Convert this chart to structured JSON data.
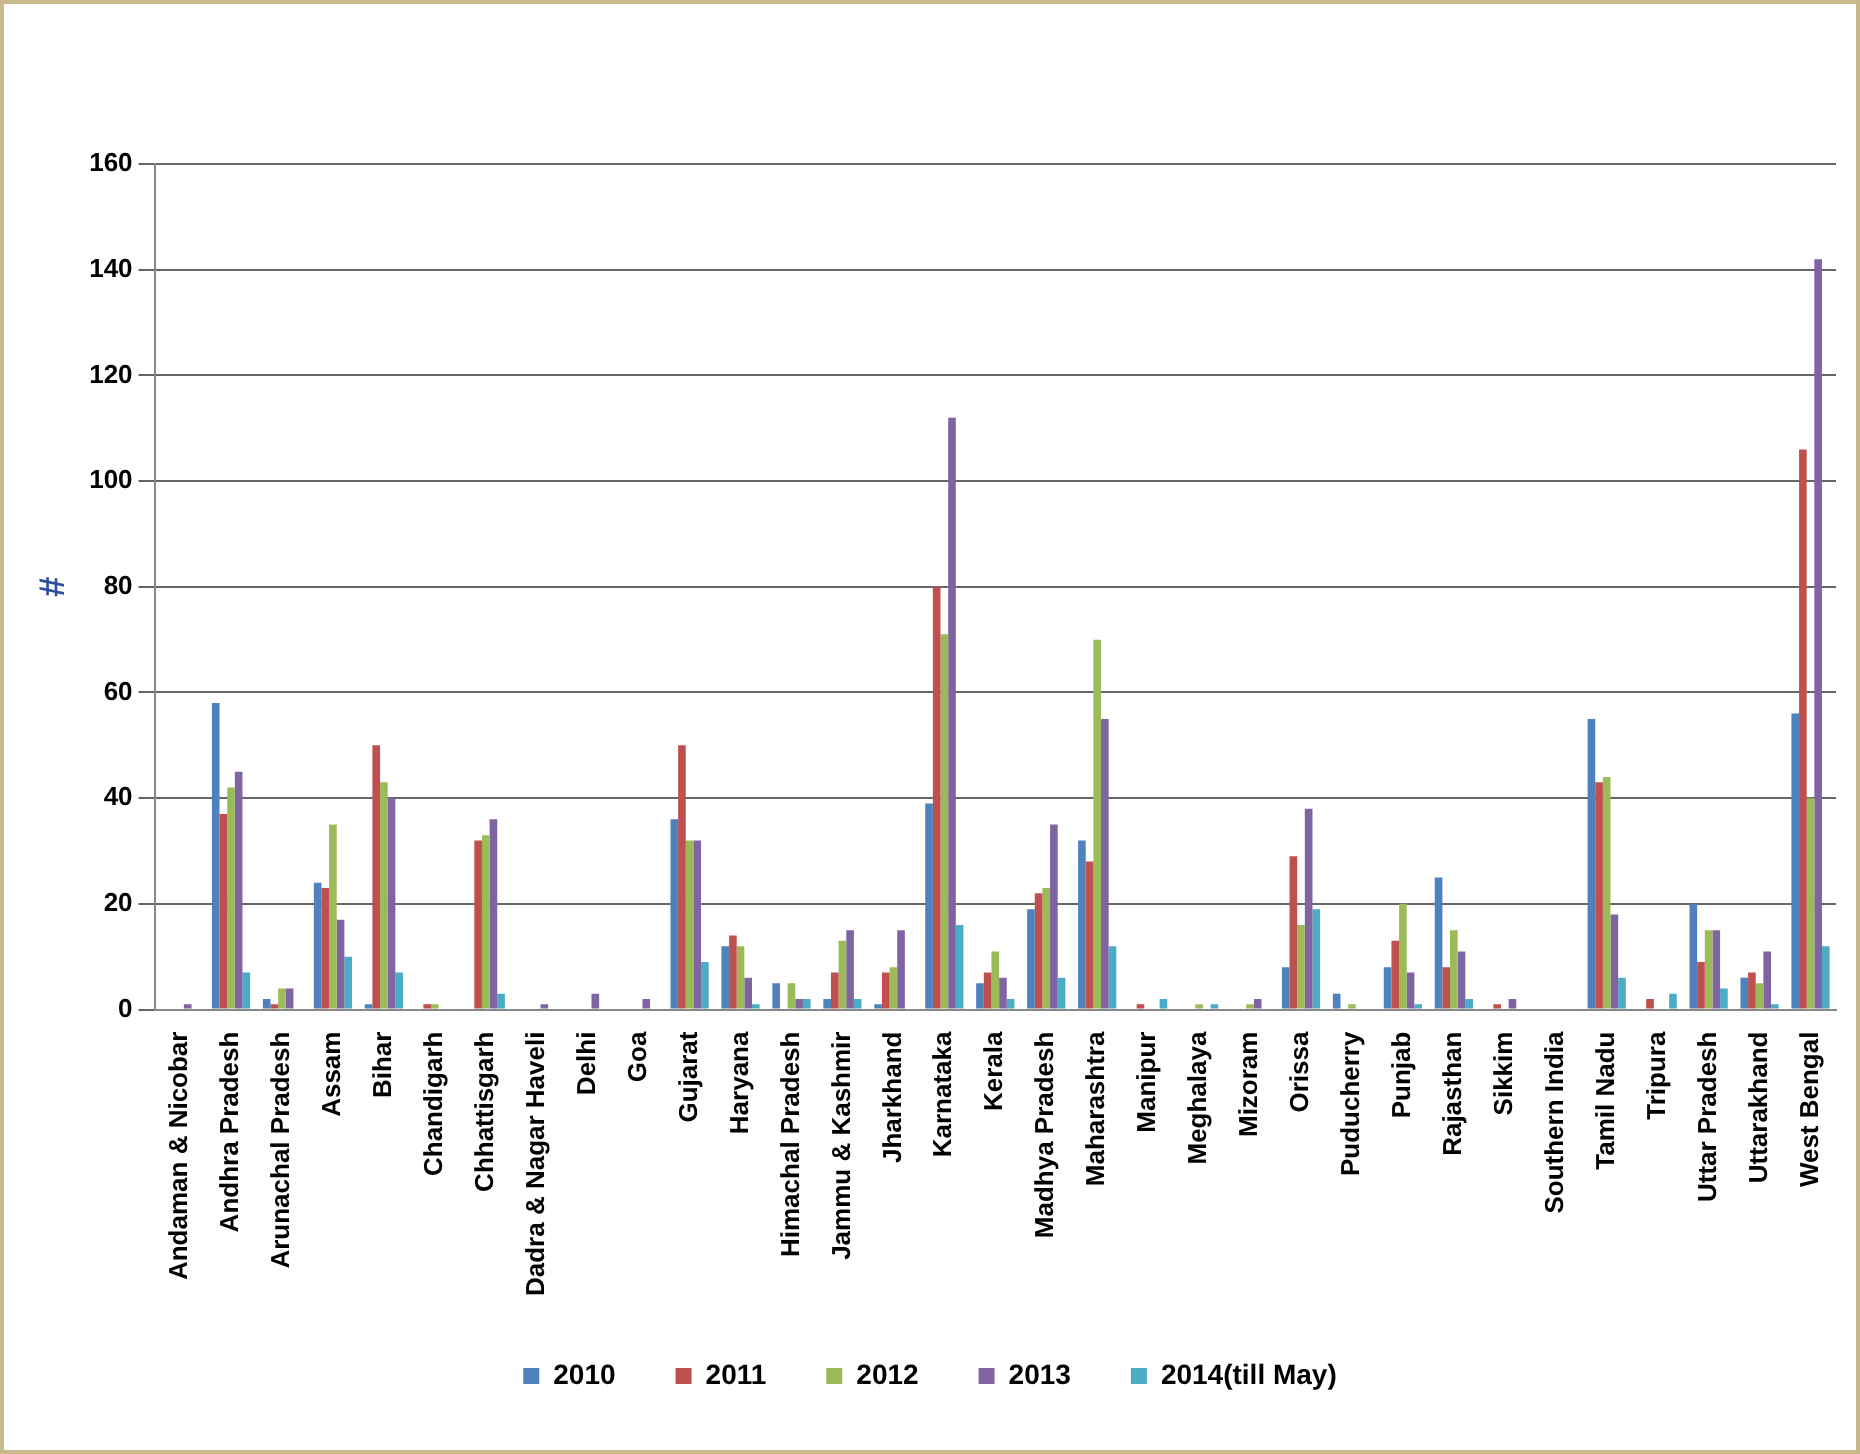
{
  "chart_data": {
    "type": "bar",
    "ylabel": "#",
    "categories": [
      "Andaman & Nicobar",
      "Andhra Pradesh",
      "Arunachal Pradesh",
      "Assam",
      "Bihar",
      "Chandigarh",
      "Chhattisgarh",
      "Dadra & Nagar Haveli",
      "Delhi",
      "Goa",
      "Gujarat",
      "Haryana",
      "Himachal Pradesh",
      "Jammu & Kashmir",
      "Jharkhand",
      "Karnataka",
      "Kerala",
      "Madhya Pradesh",
      "Maharashtra",
      "Manipur",
      "Meghalaya",
      "Mizoram",
      "Orissa",
      "Puducherry",
      "Punjab",
      "Rajasthan",
      "Sikkim",
      "Southern India",
      "Tamil Nadu",
      "Tripura",
      "Uttar Pradesh",
      "Uttarakhand",
      "West Bengal"
    ],
    "series": [
      {
        "name": "2010",
        "color": "#4f81bd",
        "values": [
          0,
          58,
          2,
          24,
          1,
          0,
          0,
          0,
          0,
          0,
          36,
          12,
          5,
          2,
          1,
          39,
          5,
          19,
          32,
          0,
          0,
          0,
          8,
          3,
          8,
          25,
          0,
          0,
          55,
          0,
          20,
          6,
          56
        ]
      },
      {
        "name": "2011",
        "color": "#c0504d",
        "values": [
          0,
          37,
          1,
          23,
          50,
          1,
          32,
          0,
          0,
          0,
          50,
          14,
          0,
          7,
          7,
          80,
          7,
          22,
          28,
          1,
          0,
          0,
          29,
          0,
          13,
          8,
          1,
          0,
          43,
          2,
          9,
          7,
          106
        ]
      },
      {
        "name": "2012",
        "color": "#9bbb59",
        "values": [
          0,
          42,
          4,
          35,
          43,
          1,
          33,
          0,
          0,
          0,
          32,
          12,
          5,
          13,
          8,
          71,
          11,
          23,
          70,
          0,
          1,
          1,
          16,
          1,
          20,
          15,
          0,
          0,
          44,
          0,
          15,
          5,
          40
        ]
      },
      {
        "name": "2013",
        "color": "#8064a2",
        "values": [
          1,
          45,
          4,
          17,
          40,
          0,
          36,
          1,
          3,
          2,
          32,
          6,
          2,
          15,
          15,
          112,
          6,
          35,
          55,
          0,
          0,
          2,
          38,
          0,
          7,
          11,
          2,
          0,
          18,
          0,
          15,
          11,
          142
        ]
      },
      {
        "name": "2014(till May)",
        "color": "#4bacc6",
        "values": [
          0,
          7,
          0,
          10,
          7,
          0,
          3,
          0,
          0,
          0,
          9,
          1,
          2,
          2,
          0,
          16,
          2,
          6,
          12,
          2,
          1,
          0,
          19,
          0,
          1,
          2,
          0,
          0,
          6,
          3,
          4,
          1,
          12
        ]
      }
    ],
    "ylim": [
      0,
      160
    ],
    "yticks": [
      0,
      20,
      40,
      60,
      80,
      100,
      120,
      140,
      160
    ],
    "grid": "y",
    "legend": "bottom"
  }
}
